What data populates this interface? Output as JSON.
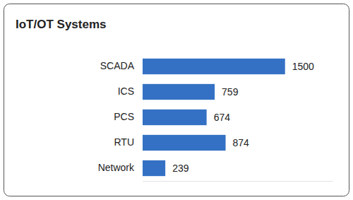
{
  "chart_data": {
    "type": "bar",
    "title": "IoT/OT Systems",
    "orientation": "horizontal",
    "categories": [
      "SCADA",
      "ICS",
      "PCS",
      "RTU",
      "Network"
    ],
    "values": [
      1500,
      759,
      674,
      874,
      239
    ],
    "color": "#3471c4",
    "xlim": [
      0,
      2000
    ],
    "data_labels": true,
    "tick_labels": "y",
    "grid": false
  }
}
